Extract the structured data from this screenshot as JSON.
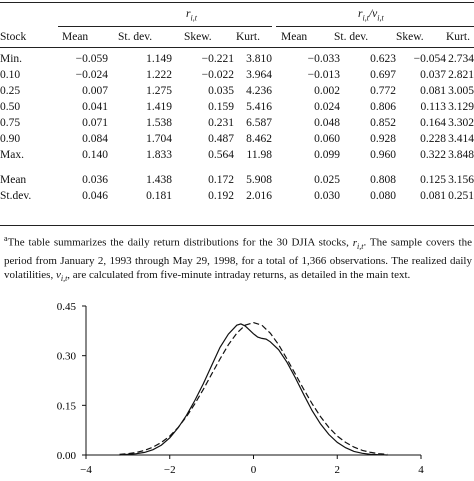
{
  "table": {
    "group_headers": [
      "r",
      "r",
      "/v"
    ],
    "columns": [
      "Stock",
      "Mean",
      "St. dev.",
      "Skew.",
      "Kurt.",
      "Mean",
      "St. dev.",
      "Skew.",
      "Kurt."
    ],
    "rows": [
      [
        "Min.",
        "−0.059",
        "1.149",
        "−0.221",
        "3.810",
        "−0.033",
        "0.623",
        "−0.054",
        "2.734"
      ],
      [
        "0.10",
        "−0.024",
        "1.222",
        "−0.022",
        "3.964",
        "−0.013",
        "0.697",
        "0.037",
        "2.821"
      ],
      [
        "0.25",
        "0.007",
        "1.275",
        "0.035",
        "4.236",
        "0.002",
        "0.772",
        "0.081",
        "3.005"
      ],
      [
        "0.50",
        "0.041",
        "1.419",
        "0.159",
        "5.416",
        "0.024",
        "0.806",
        "0.113",
        "3.129"
      ],
      [
        "0.75",
        "0.071",
        "1.538",
        "0.231",
        "6.587",
        "0.048",
        "0.852",
        "0.164",
        "3.302"
      ],
      [
        "0.90",
        "0.084",
        "1.704",
        "0.487",
        "8.462",
        "0.060",
        "0.928",
        "0.228",
        "3.414"
      ],
      [
        "Max.",
        "0.140",
        "1.833",
        "0.564",
        "11.98",
        "0.099",
        "0.960",
        "0.322",
        "3.848"
      ],
      [
        "Mean",
        "0.036",
        "1.438",
        "0.172",
        "5.908",
        "0.025",
        "0.808",
        "0.125",
        "3.156"
      ],
      [
        "St.dev.",
        "0.046",
        "0.181",
        "0.192",
        "2.016",
        "0.030",
        "0.080",
        "0.081",
        "0.251"
      ]
    ]
  },
  "note": {
    "marker": "a",
    "text_1": "The table summarizes the daily return distributions for the 30 DJIA stocks, ",
    "sym_r": "r",
    "text_2": ". The sample covers the period from January 2, 1993 through May 29, 1998, for a total of 1,366 observations. The realized daily volatilities, ",
    "sym_v": "v",
    "text_3": ", are calculated from five-minute intraday returns, as detailed in the main text."
  },
  "subscript": "i,t",
  "chart_data": {
    "type": "line",
    "title": "",
    "xlabel": "",
    "ylabel": "",
    "xlim": [
      -4,
      4
    ],
    "ylim": [
      0,
      0.45
    ],
    "x_ticks": [
      "−4",
      "−2",
      "0",
      "2",
      "4"
    ],
    "y_ticks": [
      "0.00",
      "0.15",
      "0.30",
      "0.45"
    ],
    "series": [
      {
        "style": "solid",
        "x": [
          -3.2,
          -3.0,
          -2.8,
          -2.6,
          -2.4,
          -2.2,
          -2.0,
          -1.8,
          -1.6,
          -1.4,
          -1.2,
          -1.0,
          -0.8,
          -0.6,
          -0.4,
          -0.3,
          -0.2,
          -0.1,
          0.0,
          0.1,
          0.2,
          0.3,
          0.4,
          0.6,
          0.8,
          1.0,
          1.2,
          1.4,
          1.6,
          1.8,
          2.0,
          2.2,
          2.4,
          2.6,
          2.8,
          3.0,
          3.2
        ],
        "values": [
          0.0,
          0.002,
          0.004,
          0.008,
          0.016,
          0.03,
          0.052,
          0.082,
          0.12,
          0.165,
          0.215,
          0.27,
          0.325,
          0.365,
          0.392,
          0.396,
          0.39,
          0.378,
          0.366,
          0.356,
          0.352,
          0.35,
          0.342,
          0.318,
          0.28,
          0.233,
          0.182,
          0.134,
          0.094,
          0.062,
          0.038,
          0.022,
          0.011,
          0.005,
          0.002,
          0.001,
          0.0
        ]
      },
      {
        "style": "dashed",
        "x": [
          -3.2,
          -3.0,
          -2.8,
          -2.6,
          -2.4,
          -2.2,
          -2.0,
          -1.8,
          -1.6,
          -1.4,
          -1.2,
          -1.0,
          -0.8,
          -0.6,
          -0.4,
          -0.2,
          0.0,
          0.2,
          0.4,
          0.6,
          0.8,
          1.0,
          1.2,
          1.4,
          1.6,
          1.8,
          2.0,
          2.2,
          2.4,
          2.6,
          2.8,
          3.0,
          3.2
        ],
        "values": [
          0.002,
          0.004,
          0.008,
          0.014,
          0.024,
          0.038,
          0.057,
          0.083,
          0.116,
          0.155,
          0.198,
          0.244,
          0.29,
          0.333,
          0.368,
          0.392,
          0.4,
          0.392,
          0.368,
          0.333,
          0.29,
          0.244,
          0.198,
          0.155,
          0.116,
          0.083,
          0.057,
          0.038,
          0.024,
          0.014,
          0.008,
          0.004,
          0.002
        ]
      }
    ]
  }
}
